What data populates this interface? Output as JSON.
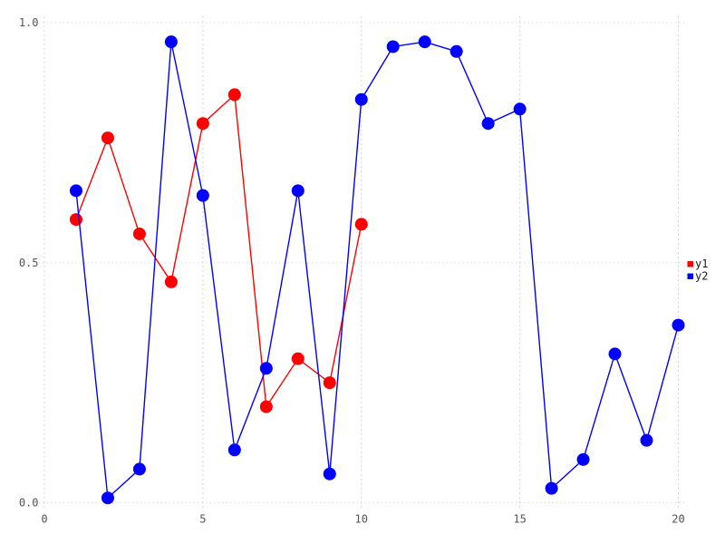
{
  "chart_data": {
    "type": "line",
    "title": "",
    "xlabel": "",
    "ylabel": "",
    "xlim": [
      0,
      20
    ],
    "ylim": [
      0.0,
      1.0
    ],
    "x_ticks": [
      0,
      5,
      10,
      15,
      20
    ],
    "x_tick_labels": [
      "0",
      "5",
      "10",
      "15",
      "20"
    ],
    "y_ticks": [
      0.0,
      0.5,
      1.0
    ],
    "y_tick_labels": [
      "0.0",
      "0.5",
      "1.0"
    ],
    "grid": "dotted",
    "legend_position": "right-outside",
    "marker": "circle",
    "background_color": "#ffffff",
    "tick_label_color": "#545454",
    "hgrid_color": "#dcdcdc",
    "vgrid_color": "#d4d4e4",
    "series": [
      {
        "name": "y1",
        "color": "#ff0000",
        "x": [
          1,
          2,
          3,
          4,
          5,
          6,
          7,
          8,
          9,
          10
        ],
        "values": [
          0.59,
          0.76,
          0.56,
          0.46,
          0.79,
          0.85,
          0.2,
          0.3,
          0.25,
          0.58
        ]
      },
      {
        "name": "y2",
        "color": "#0000ff",
        "x": [
          1,
          2,
          3,
          4,
          5,
          6,
          7,
          8,
          9,
          10,
          11,
          12,
          13,
          14,
          15,
          16,
          17,
          18,
          19,
          20
        ],
        "values": [
          0.65,
          0.01,
          0.07,
          0.96,
          0.64,
          0.11,
          0.28,
          0.65,
          0.06,
          0.84,
          0.95,
          0.96,
          0.94,
          0.79,
          0.82,
          0.03,
          0.09,
          0.31,
          0.13,
          0.37
        ]
      }
    ]
  }
}
